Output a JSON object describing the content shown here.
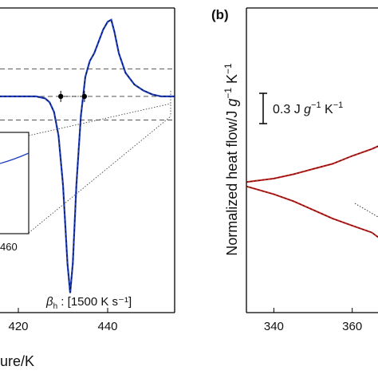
{
  "chart_data": [
    {
      "panel": "a",
      "type": "line",
      "xlabel_fragment": "ure/K",
      "xticks": [
        420,
        440
      ],
      "xlim": [
        405,
        455
      ],
      "ylim": [
        -1.1,
        0.45
      ],
      "annotation": "[1500 K s⁻¹]",
      "annotation_symbol": "β",
      "annotation_subscript": "h",
      "annotation_colon": " : ",
      "inset_tick_fragment": "460",
      "dashed_levels": [
        0.14,
        0.0,
        -0.12
      ],
      "markers": [
        {
          "x": 429.5,
          "y": 0.0
        },
        {
          "x": 434.8,
          "y": 0.0
        }
      ],
      "series": [
        {
          "color": "#1f3fbf",
          "fit_color": "#000000",
          "points": [
            [
              405,
              0.0
            ],
            [
              410,
              0.0
            ],
            [
              415,
              0.0
            ],
            [
              420,
              0.0
            ],
            [
              424,
              0.0
            ],
            [
              426,
              -0.01
            ],
            [
              427,
              -0.03
            ],
            [
              428,
              -0.08
            ],
            [
              429,
              -0.2
            ],
            [
              430,
              -0.45
            ],
            [
              431,
              -0.85
            ],
            [
              431.6,
              -1.0
            ],
            [
              432.2,
              -0.85
            ],
            [
              433,
              -0.45
            ],
            [
              434,
              -0.1
            ],
            [
              435,
              0.1
            ],
            [
              436,
              0.18
            ],
            [
              437,
              0.22
            ],
            [
              438,
              0.28
            ],
            [
              439,
              0.34
            ],
            [
              440,
              0.38
            ],
            [
              440.8,
              0.39
            ],
            [
              441.5,
              0.33
            ],
            [
              442.5,
              0.22
            ],
            [
              444,
              0.12
            ],
            [
              446,
              0.06
            ],
            [
              448,
              0.03
            ],
            [
              450,
              0.01
            ],
            [
              452,
              0.0
            ],
            [
              455,
              0.0
            ]
          ]
        }
      ]
    },
    {
      "panel": "b",
      "panel_label": "(b)",
      "type": "line",
      "ylabel_text": "Normalized heat flow/J ",
      "ylabel_g": "g",
      "ylabel_exp1": "−1",
      "ylabel_k": " K",
      "ylabel_exp2": "−1",
      "scale_bar_label_pre": "0.3 J ",
      "scale_bar_label_g": "g",
      "scale_bar_label_exp1": "−1",
      "scale_bar_label_k": " K",
      "scale_bar_label_exp2": "−1",
      "scale_bar_value": 0.3,
      "xticks": [
        340,
        360
      ],
      "xlim": [
        333,
        380
      ],
      "ylim": [
        -1.5,
        2.0
      ],
      "series": [
        {
          "name": "",
          "color": "#c0201c",
          "points": [
            [
              333,
              0.0
            ],
            [
              340,
              0.04
            ],
            [
              345,
              0.09
            ],
            [
              350,
              0.15
            ],
            [
              355,
              0.21
            ],
            [
              360,
              0.3
            ],
            [
              365,
              0.38
            ],
            [
              370,
              0.48
            ],
            [
              375,
              0.6
            ],
            [
              380,
              0.7
            ]
          ]
        },
        {
          "name": "",
          "color": "#c0201c",
          "points": [
            [
              333,
              -0.05
            ],
            [
              340,
              -0.14
            ],
            [
              345,
              -0.22
            ],
            [
              350,
              -0.32
            ],
            [
              355,
              -0.42
            ],
            [
              360,
              -0.5
            ],
            [
              365,
              -0.58
            ],
            [
              368,
              -0.68
            ],
            [
              372,
              -0.72
            ],
            [
              376,
              -0.82
            ],
            [
              380,
              -0.9
            ]
          ]
        }
      ]
    }
  ]
}
